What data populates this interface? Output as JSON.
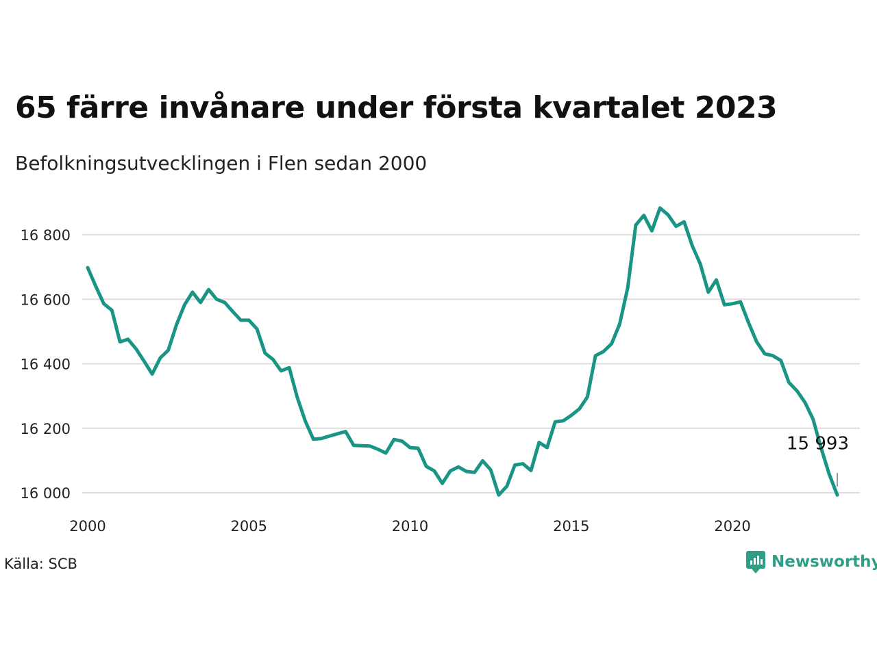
{
  "header": {
    "title": "65 färre invånare under första kvartalet 2023",
    "subtitle": "Befolkningsutvecklingen i Flen sedan 2000"
  },
  "footer": {
    "source": "Källa: SCB",
    "brand": "Newsworthy"
  },
  "colors": {
    "line": "#1a9585",
    "grid": "#dddddd",
    "brand": "#2e9e87"
  },
  "icons": {
    "brand_logo": "newsworthy-logo-icon"
  },
  "chart_data": {
    "type": "line",
    "title": "65 färre invånare under första kvartalet 2023",
    "subtitle": "Befolkningsutvecklingen i Flen sedan 2000",
    "xlabel": "",
    "ylabel": "",
    "x_start": 2000.0,
    "x_step": 0.25,
    "xlim": [
      2000,
      2024
    ],
    "ylim": [
      15950,
      16920
    ],
    "x_ticks": [
      2000,
      2005,
      2010,
      2015,
      2020
    ],
    "x_tick_labels": [
      "2000",
      "2005",
      "2010",
      "2015",
      "2020"
    ],
    "y_ticks": [
      16000,
      16200,
      16400,
      16600,
      16800
    ],
    "y_tick_labels": [
      "16 000",
      "16 200",
      "16 400",
      "16 600",
      "16 800"
    ],
    "grid": true,
    "legend": "none",
    "end_label": "15 993",
    "values": [
      16698,
      16640,
      16586,
      16566,
      16468,
      16476,
      16446,
      16408,
      16368,
      16418,
      16442,
      16520,
      16582,
      16622,
      16590,
      16630,
      16600,
      16590,
      16562,
      16535,
      16535,
      16508,
      16433,
      16413,
      16378,
      16388,
      16296,
      16222,
      16166,
      16168,
      16176,
      16183,
      16190,
      16147,
      16146,
      16145,
      16135,
      16123,
      16165,
      16160,
      16140,
      16138,
      16082,
      16068,
      16029,
      16068,
      16080,
      16066,
      16063,
      16099,
      16071,
      15993,
      16020,
      16086,
      16090,
      16069,
      16156,
      16140,
      16220,
      16223,
      16240,
      16260,
      16297,
      16425,
      16438,
      16462,
      16523,
      16636,
      16830,
      16860,
      16812,
      16883,
      16862,
      16826,
      16840,
      16766,
      16710,
      16622,
      16660,
      16583,
      16586,
      16592,
      16527,
      16468,
      16431,
      16425,
      16410,
      16342,
      16316,
      16280,
      16228,
      16138,
      16058,
      15993
    ]
  }
}
